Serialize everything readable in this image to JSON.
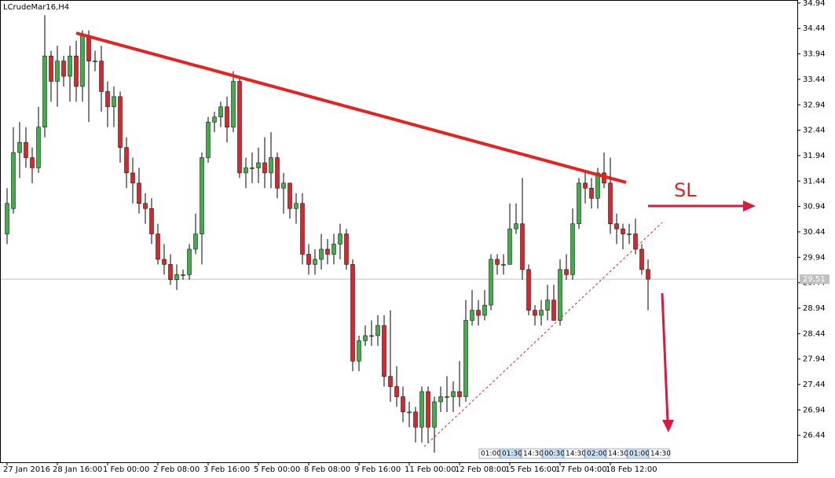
{
  "chart_data": {
    "type": "candlestick",
    "title": "LCrudeMar16,H4",
    "categories": [
      "27 Jan 2016",
      null,
      null,
      null,
      null,
      null,
      null,
      null,
      "28 Jan 16:00",
      null,
      null,
      null,
      null,
      null,
      null,
      null,
      "1 Feb 00:00",
      null,
      null,
      null,
      null,
      null,
      null,
      null,
      "2 Feb 08:00",
      null,
      null,
      null,
      null,
      null,
      null,
      null,
      "3 Feb 16:00",
      null,
      null,
      null,
      null,
      null,
      null,
      null,
      "5 Feb 00:00",
      null,
      null,
      null,
      null,
      null,
      null,
      null,
      "8 Feb 08:00",
      null,
      null,
      null,
      null,
      null,
      null,
      null,
      "9 Feb 16:00",
      null,
      null,
      null,
      null,
      null,
      null,
      null,
      "11 Feb 00:00",
      null,
      null,
      null,
      null,
      null,
      null,
      null,
      "12 Feb 08:00",
      null,
      null,
      null,
      null,
      null,
      null,
      null,
      "15 Feb 16:00",
      null,
      null,
      null,
      null,
      null,
      null,
      null,
      "17 Feb 04:00",
      null,
      null,
      null,
      null,
      null,
      null,
      null,
      "18 Feb 12:00",
      null,
      null,
      null,
      null,
      null,
      null
    ],
    "open": [
      30.4,
      30.9,
      32.0,
      32.2,
      31.9,
      31.7,
      32.5,
      33.9,
      33.4,
      33.8,
      33.5,
      33.9,
      33.3,
      34.3,
      33.8,
      33.8,
      33.2,
      32.9,
      33.1,
      32.1,
      31.6,
      31.4,
      31.0,
      30.9,
      30.4,
      29.9,
      29.8,
      29.5,
      29.6,
      29.6,
      30.1,
      30.4,
      31.9,
      32.6,
      32.7,
      32.9,
      32.5,
      33.4,
      31.6,
      31.7,
      31.7,
      31.8,
      31.6,
      31.9,
      31.3,
      31.4,
      30.9,
      31.0,
      30.0,
      29.8,
      29.9,
      30.1,
      30.0,
      30.2,
      30.4,
      29.8,
      27.9,
      28.3,
      28.4,
      28.4,
      28.6,
      27.6,
      27.4,
      27.2,
      26.9,
      26.9,
      26.6,
      27.3,
      26.6,
      27.1,
      27.2,
      27.2,
      27.3,
      27.2,
      28.7,
      28.9,
      28.8,
      29.0,
      29.9,
      29.8,
      29.8,
      30.5,
      30.6,
      29.7,
      28.9,
      28.8,
      28.9,
      29.1,
      28.7,
      29.7,
      29.6,
      30.6,
      31.4,
      31.3,
      31.1,
      31.6,
      31.4,
      30.6,
      30.5,
      30.4,
      30.4,
      30.1,
      29.7
    ],
    "high": [
      31.3,
      32.5,
      32.6,
      32.5,
      32.1,
      32.9,
      34.7,
      34.0,
      34.1,
      33.9,
      34.1,
      34.2,
      34.4,
      34.4,
      34.0,
      34.1,
      33.4,
      33.3,
      33.2,
      32.3,
      31.9,
      31.7,
      31.2,
      31.1,
      30.6,
      30.2,
      30.0,
      29.8,
      29.7,
      30.2,
      30.8,
      32.0,
      32.7,
      32.8,
      33.0,
      33.1,
      33.6,
      33.5,
      31.9,
      32.0,
      32.1,
      32.3,
      32.4,
      32.0,
      31.6,
      31.4,
      31.2,
      31.2,
      30.2,
      30.1,
      30.4,
      30.3,
      30.4,
      30.6,
      30.5,
      29.9,
      28.4,
      28.6,
      28.7,
      28.8,
      28.8,
      28.9,
      27.8,
      27.4,
      27.1,
      27.0,
      27.4,
      27.4,
      27.2,
      27.4,
      27.6,
      27.5,
      27.9,
      29.1,
      29.3,
      29.1,
      29.3,
      30.0,
      30.0,
      30.0,
      31.0,
      31.0,
      31.5,
      29.8,
      29.0,
      29.1,
      29.4,
      29.4,
      29.9,
      30.0,
      30.9,
      31.5,
      31.6,
      31.5,
      31.7,
      32.0,
      31.9,
      30.8,
      30.6,
      30.6,
      30.7,
      30.2,
      29.9
    ],
    "low": [
      30.2,
      30.8,
      31.5,
      31.7,
      31.4,
      31.6,
      32.3,
      33.0,
      32.9,
      33.3,
      33.0,
      33.0,
      33.0,
      32.6,
      33.6,
      32.8,
      32.5,
      32.5,
      31.8,
      31.3,
      31.0,
      30.8,
      30.6,
      30.2,
      29.8,
      29.6,
      29.4,
      29.3,
      29.5,
      29.5,
      30.0,
      29.8,
      31.8,
      32.4,
      32.5,
      32.2,
      32.4,
      31.5,
      31.3,
      31.4,
      31.4,
      31.3,
      31.3,
      31.1,
      30.8,
      30.7,
      30.6,
      29.8,
      29.6,
      29.6,
      29.7,
      29.8,
      29.8,
      29.9,
      29.7,
      27.7,
      27.7,
      28.2,
      28.2,
      28.2,
      27.4,
      27.1,
      27.0,
      26.7,
      26.6,
      26.3,
      26.3,
      26.3,
      26.1,
      26.9,
      26.9,
      26.9,
      27.0,
      27.1,
      28.6,
      28.6,
      28.7,
      28.9,
      29.6,
      29.6,
      29.8,
      30.4,
      29.5,
      28.8,
      28.6,
      28.6,
      28.7,
      28.7,
      28.6,
      29.5,
      29.5,
      30.5,
      31.0,
      30.9,
      30.9,
      31.3,
      30.4,
      30.2,
      30.1,
      30.2,
      30.0,
      29.6,
      28.9
    ],
    "close": [
      31.0,
      32.0,
      32.2,
      31.9,
      31.7,
      32.5,
      33.9,
      33.4,
      33.8,
      33.5,
      33.9,
      33.3,
      34.3,
      33.8,
      33.8,
      33.2,
      32.9,
      33.1,
      32.1,
      31.6,
      31.4,
      31.0,
      30.9,
      30.4,
      29.9,
      29.8,
      29.5,
      29.6,
      29.6,
      30.1,
      30.4,
      31.9,
      32.6,
      32.7,
      32.9,
      32.5,
      33.4,
      31.6,
      31.7,
      31.7,
      31.8,
      31.6,
      31.9,
      31.3,
      31.4,
      30.9,
      31.0,
      30.0,
      29.8,
      29.9,
      30.1,
      30.0,
      30.2,
      30.4,
      29.8,
      27.9,
      28.3,
      28.4,
      28.4,
      28.6,
      27.6,
      27.4,
      27.2,
      26.9,
      26.9,
      26.6,
      27.3,
      26.6,
      27.1,
      27.2,
      27.2,
      27.3,
      27.2,
      28.7,
      28.9,
      28.8,
      29.0,
      29.9,
      29.8,
      29.8,
      30.5,
      30.6,
      29.7,
      28.9,
      28.8,
      28.9,
      29.1,
      28.7,
      29.7,
      29.6,
      30.6,
      31.4,
      31.3,
      31.1,
      31.6,
      31.4,
      30.6,
      30.5,
      30.4,
      30.4,
      30.1,
      29.7,
      29.51
    ],
    "up_color": "#3fae49",
    "down_color": "#d9262b",
    "ylim": [
      25.91,
      35.0
    ],
    "yticks": [
      26.44,
      26.94,
      27.44,
      27.94,
      28.44,
      28.94,
      29.44,
      29.94,
      30.44,
      30.94,
      31.44,
      31.94,
      32.44,
      32.94,
      33.44,
      33.94,
      34.44,
      34.94
    ],
    "current_price": {
      "value": 29.51,
      "label": "29.51"
    },
    "annotations": [
      "SL"
    ],
    "time_markers": [
      "01:00",
      "01:30",
      "14:30",
      "00:30",
      "14:30",
      "02:00",
      "14:30",
      "01:00",
      "14:30"
    ]
  }
}
